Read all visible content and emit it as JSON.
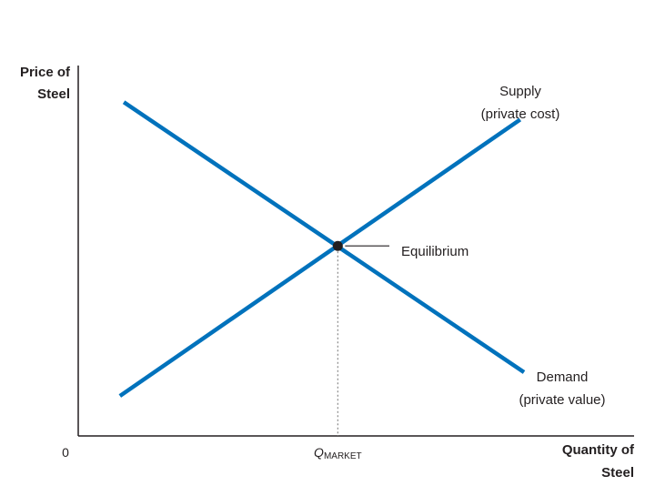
{
  "chart_data": {
    "type": "line",
    "ylabel": [
      "Price of",
      "Steel"
    ],
    "xlabel": [
      "Quantity of",
      "Steel"
    ],
    "origin_label": "0",
    "x_tick": {
      "main": "Q",
      "sub": "MARKET"
    },
    "xlim": [
      0,
      100
    ],
    "ylim": [
      0,
      100
    ],
    "grid": false,
    "series": [
      {
        "name": "Supply",
        "label_lines": [
          "Supply",
          "(private cost)"
        ],
        "color": "#0072bc",
        "points": [
          [
            7.5,
            10.8
          ],
          [
            79.5,
            85.4
          ]
        ]
      },
      {
        "name": "Demand",
        "label_lines": [
          "Demand",
          "(private value)"
        ],
        "color": "#0072bc",
        "points": [
          [
            8.2,
            90.1
          ],
          [
            80.2,
            17.2
          ]
        ]
      }
    ],
    "equilibrium": {
      "label": "Equilibrium",
      "x": 46.7,
      "y": 51.3,
      "color": "#231f20"
    }
  }
}
